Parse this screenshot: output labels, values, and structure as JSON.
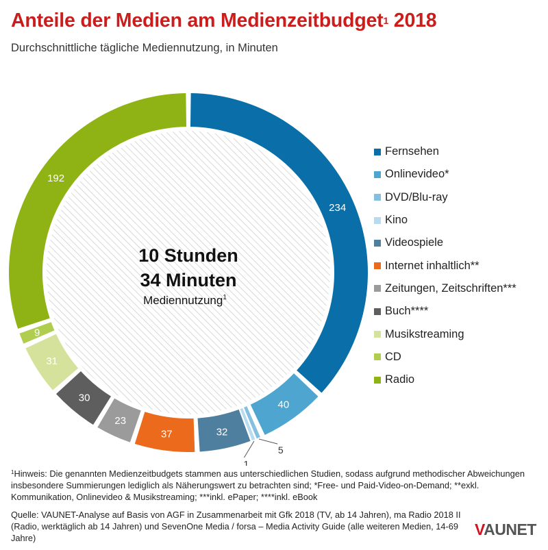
{
  "title": "Anteile der Medien am Medienzeitbudget",
  "title_sup": "1",
  "title_year": " 2018",
  "subtitle": "Durchschnittliche tägliche Mediennutzung, in Minuten",
  "center": {
    "line1": "10 Stunden",
    "line2": "34 Minuten",
    "line3": "Mediennutzung",
    "line3_sup": "1"
  },
  "footnote": {
    "sup": "1",
    "text": "Hinweis: Die genannten Medienzeitbudgets stammen aus unterschiedlichen Studien, sodass aufgrund methodischer Abweichungen insbesondere Summierungen lediglich als Näherungswert zu betrachten sind; *Free- und Paid-Video-on-Demand; **exkl. Kommunikation, Onlinevideo & Musikstreaming; ***inkl. ePaper; ****inkl. eBook"
  },
  "source": "Quelle: VAUNET-Analyse auf Basis von AGF in Zusammenarbeit mit Gfk 2018 (TV, ab 14 Jahren), ma Radio 2018 II (Radio, werktäglich ab 14 Jahren) und SevenOne Media / forsa – Media Activity Guide (alle weiteren Medien, 14-69 Jahre)",
  "logo": {
    "v": "V",
    "rest": "AUNET"
  },
  "chart_data": {
    "type": "pie",
    "donut": true,
    "title": "Anteile der Medien am Medienzeitbudget 2018",
    "subtitle": "Durchschnittliche tägliche Mediennutzung, in Minuten",
    "unit": "Minuten",
    "total_minutes": 634,
    "legend_position": "right",
    "categories": [
      "Fernsehen",
      "Onlinevideo*",
      "DVD/Blu-ray",
      "Kino",
      "Videospiele",
      "Internet inhaltlich**",
      "Zeitungen, Zeitschriften***",
      "Buch****",
      "Musikstreaming",
      "CD",
      "Radio"
    ],
    "values": [
      234,
      40,
      5,
      1,
      32,
      37,
      23,
      30,
      31,
      9,
      192
    ],
    "colors": [
      "#0a6ea8",
      "#4ea5d0",
      "#85c0e1",
      "#b7dcef",
      "#4f7f9e",
      "#ec6a1c",
      "#9b9b9b",
      "#5e5e5e",
      "#d4e29c",
      "#b0cd50",
      "#8fb315"
    ],
    "label_inside": [
      true,
      true,
      false,
      false,
      true,
      true,
      true,
      true,
      true,
      true,
      true
    ]
  }
}
